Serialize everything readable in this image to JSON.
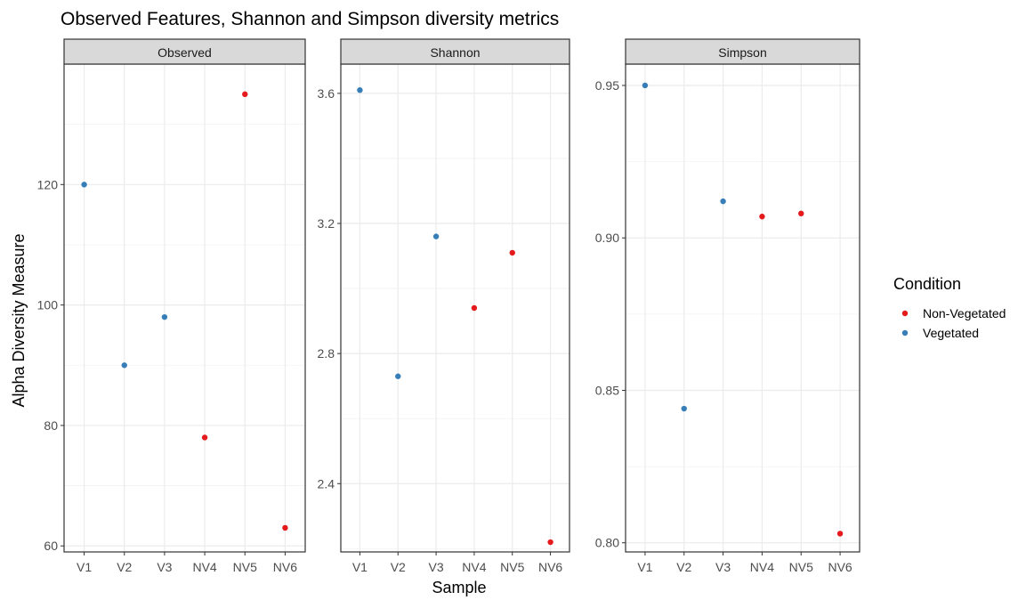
{
  "chart_data": {
    "type": "scatter",
    "title": "Observed Features, Shannon and Simpson diversity metrics",
    "xlabel": "Sample",
    "ylabel": "Alpha Diversity Measure",
    "categories": [
      "V1",
      "V2",
      "V3",
      "NV4",
      "NV5",
      "NV6"
    ],
    "grid": true,
    "legend": {
      "title": "Condition",
      "placement": "right",
      "entries": [
        {
          "name": "Non-Vegetated",
          "color": "#e41a1c"
        },
        {
          "name": "Vegetated",
          "color": "#377eb8"
        }
      ]
    },
    "condition_by_sample": [
      "Vegetated",
      "Vegetated",
      "Vegetated",
      "Non-Vegetated",
      "Non-Vegetated",
      "Non-Vegetated"
    ],
    "panels": [
      {
        "name": "Observed",
        "ylim": [
          59,
          140
        ],
        "yticks": [
          60,
          80,
          100,
          120
        ],
        "ytick_labels": [
          "60",
          "80",
          "100",
          "120"
        ],
        "values": [
          120,
          90,
          98,
          78,
          135,
          63
        ]
      },
      {
        "name": "Shannon",
        "ylim": [
          2.19,
          3.69
        ],
        "yticks": [
          2.4,
          2.8,
          3.2,
          3.6
        ],
        "ytick_labels": [
          "2.4",
          "2.8",
          "3.2",
          "3.6"
        ],
        "values": [
          3.61,
          2.73,
          3.16,
          2.94,
          3.11,
          2.22
        ]
      },
      {
        "name": "Simpson",
        "ylim": [
          0.797,
          0.957
        ],
        "yticks": [
          0.8,
          0.85,
          0.9,
          0.95
        ],
        "ytick_labels": [
          "0.80",
          "0.85",
          "0.90",
          "0.95"
        ],
        "values": [
          0.95,
          0.844,
          0.912,
          0.907,
          0.908,
          0.803
        ]
      }
    ]
  }
}
